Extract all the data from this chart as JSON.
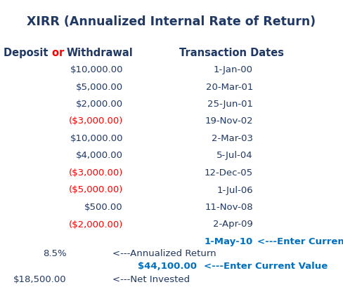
{
  "title": "XIRR (Annualized Internal Rate of Return)",
  "deposits": [
    "$10,000.00",
    "$5,000.00",
    "$2,000.00",
    "($3,000.00)",
    "$10,000.00",
    "$4,000.00",
    "($3,000.00)",
    "($5,000.00)",
    "$500.00",
    "($2,000.00)"
  ],
  "deposit_colors": [
    "#1F3864",
    "#1F3864",
    "#1F3864",
    "#FF0000",
    "#1F3864",
    "#1F3864",
    "#FF0000",
    "#FF0000",
    "#1F3864",
    "#FF0000"
  ],
  "dates": [
    "1-Jan-00",
    "20-Mar-01",
    "25-Jun-01",
    "19-Nov-02",
    "2-Mar-03",
    "5-Jul-04",
    "12-Dec-05",
    "1-Jul-06",
    "11-Nov-08",
    "2-Apr-09"
  ],
  "current_date": "1-May-10",
  "current_date_label": "<---Enter Current Date",
  "annualized_return_value": "8.5%",
  "annualized_return_label": "<---Annualized Return",
  "current_value": "$44,100.00",
  "current_value_label": "<---Enter Current Value",
  "net_invested_value": "$18,500.00",
  "net_invested_label": "<---Net Invested",
  "color_dark_blue": "#1F3864",
  "color_red": "#FF0000",
  "color_blue": "#0070C0",
  "bg_color": "#DCE6F1",
  "title_fontsize": 12.5,
  "body_fontsize": 9.5,
  "header_fontsize": 10.5
}
